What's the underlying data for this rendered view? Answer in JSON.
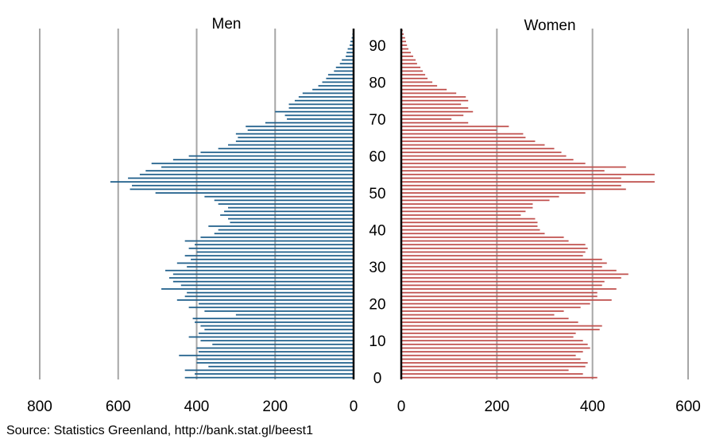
{
  "chart_data": {
    "type": "bar",
    "orientation": "horizontal",
    "layout": "population-pyramid",
    "source": "Source: Statistics Greenland, http://bank.stat.gl/beest1",
    "age_axis": {
      "ticks": [
        "0",
        "10",
        "20",
        "30",
        "40",
        "50",
        "60",
        "70",
        "80",
        "90"
      ],
      "range": [
        0,
        94
      ]
    },
    "panels": [
      {
        "title": "Men",
        "side": "left",
        "color": "#1f5f8b",
        "xlim": [
          0,
          800
        ],
        "tick_labels": [
          "800",
          "600",
          "400",
          "200",
          "0"
        ],
        "ages": [
          0,
          1,
          2,
          3,
          4,
          5,
          6,
          7,
          8,
          9,
          10,
          11,
          12,
          13,
          14,
          15,
          16,
          17,
          18,
          19,
          20,
          21,
          22,
          23,
          24,
          25,
          26,
          27,
          28,
          29,
          30,
          31,
          32,
          33,
          34,
          35,
          36,
          37,
          38,
          39,
          40,
          41,
          42,
          43,
          44,
          45,
          46,
          47,
          48,
          49,
          50,
          51,
          52,
          53,
          54,
          55,
          56,
          57,
          58,
          59,
          60,
          61,
          62,
          63,
          64,
          65,
          66,
          67,
          68,
          69,
          70,
          71,
          72,
          73,
          74,
          75,
          76,
          77,
          78,
          79,
          80,
          81,
          82,
          83,
          84,
          85,
          86,
          87,
          88,
          89,
          90,
          91,
          92,
          93,
          94
        ],
        "values": [
          430,
          405,
          430,
          370,
          400,
          400,
          445,
          395,
          400,
          360,
          390,
          420,
          395,
          380,
          390,
          405,
          410,
          300,
          380,
          420,
          395,
          450,
          430,
          425,
          490,
          440,
          460,
          470,
          460,
          480,
          425,
          450,
          415,
          430,
          400,
          420,
          405,
          430,
          390,
          355,
          345,
          370,
          315,
          320,
          340,
          330,
          320,
          345,
          355,
          380,
          505,
          570,
          565,
          620,
          575,
          545,
          530,
          490,
          515,
          460,
          420,
          390,
          345,
          320,
          300,
          295,
          300,
          270,
          275,
          225,
          170,
          175,
          200,
          165,
          165,
          150,
          140,
          130,
          105,
          90,
          80,
          70,
          65,
          50,
          45,
          35,
          30,
          20,
          18,
          15,
          10,
          8,
          5,
          3,
          2
        ]
      },
      {
        "title": "Women",
        "side": "right",
        "color": "#c0504d",
        "xlim": [
          0,
          600
        ],
        "tick_labels": [
          "0",
          "200",
          "400",
          "600"
        ],
        "ages": [
          0,
          1,
          2,
          3,
          4,
          5,
          6,
          7,
          8,
          9,
          10,
          11,
          12,
          13,
          14,
          15,
          16,
          17,
          18,
          19,
          20,
          21,
          22,
          23,
          24,
          25,
          26,
          27,
          28,
          29,
          30,
          31,
          32,
          33,
          34,
          35,
          36,
          37,
          38,
          39,
          40,
          41,
          42,
          43,
          44,
          45,
          46,
          47,
          48,
          49,
          50,
          51,
          52,
          53,
          54,
          55,
          56,
          57,
          58,
          59,
          60,
          61,
          62,
          63,
          64,
          65,
          66,
          67,
          68,
          69,
          70,
          71,
          72,
          73,
          74,
          75,
          76,
          77,
          78,
          79,
          80,
          81,
          82,
          83,
          84,
          85,
          86,
          87,
          88,
          89,
          90,
          91,
          92,
          93,
          94
        ],
        "values": [
          410,
          380,
          350,
          385,
          390,
          375,
          365,
          380,
          395,
          390,
          380,
          360,
          365,
          415,
          420,
          370,
          350,
          320,
          340,
          375,
          395,
          440,
          410,
          410,
          450,
          420,
          425,
          460,
          475,
          450,
          420,
          430,
          420,
          380,
          385,
          390,
          385,
          350,
          340,
          300,
          290,
          285,
          285,
          280,
          250,
          260,
          275,
          275,
          310,
          330,
          385,
          470,
          460,
          530,
          460,
          530,
          425,
          470,
          385,
          360,
          345,
          335,
          320,
          300,
          280,
          260,
          255,
          200,
          225,
          140,
          105,
          130,
          150,
          140,
          125,
          140,
          135,
          115,
          95,
          75,
          65,
          55,
          50,
          45,
          40,
          33,
          30,
          25,
          20,
          15,
          12,
          10,
          8,
          5,
          3
        ]
      }
    ]
  }
}
